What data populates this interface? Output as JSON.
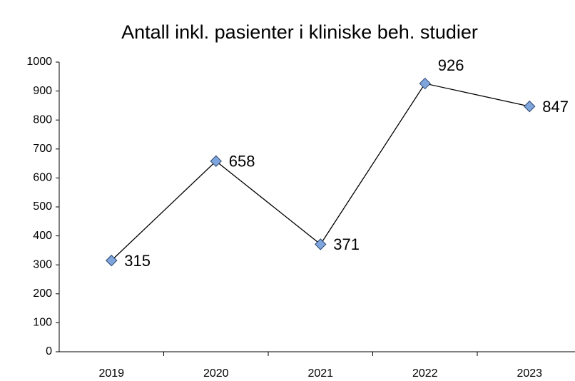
{
  "chart_data": {
    "type": "line",
    "title": "Antall inkl. pasienter i kliniske beh. studier",
    "categories": [
      "2019",
      "2020",
      "2021",
      "2022",
      "2023"
    ],
    "series": [
      {
        "name": "Antall",
        "color": "#000000",
        "marker_color": "#7fa6dc",
        "values": [
          315,
          658,
          371,
          926,
          847
        ]
      }
    ],
    "ylim": [
      0,
      1000
    ],
    "yticks": [
      0,
      100,
      200,
      300,
      400,
      500,
      600,
      700,
      800,
      900,
      1000
    ],
    "grid": false
  }
}
